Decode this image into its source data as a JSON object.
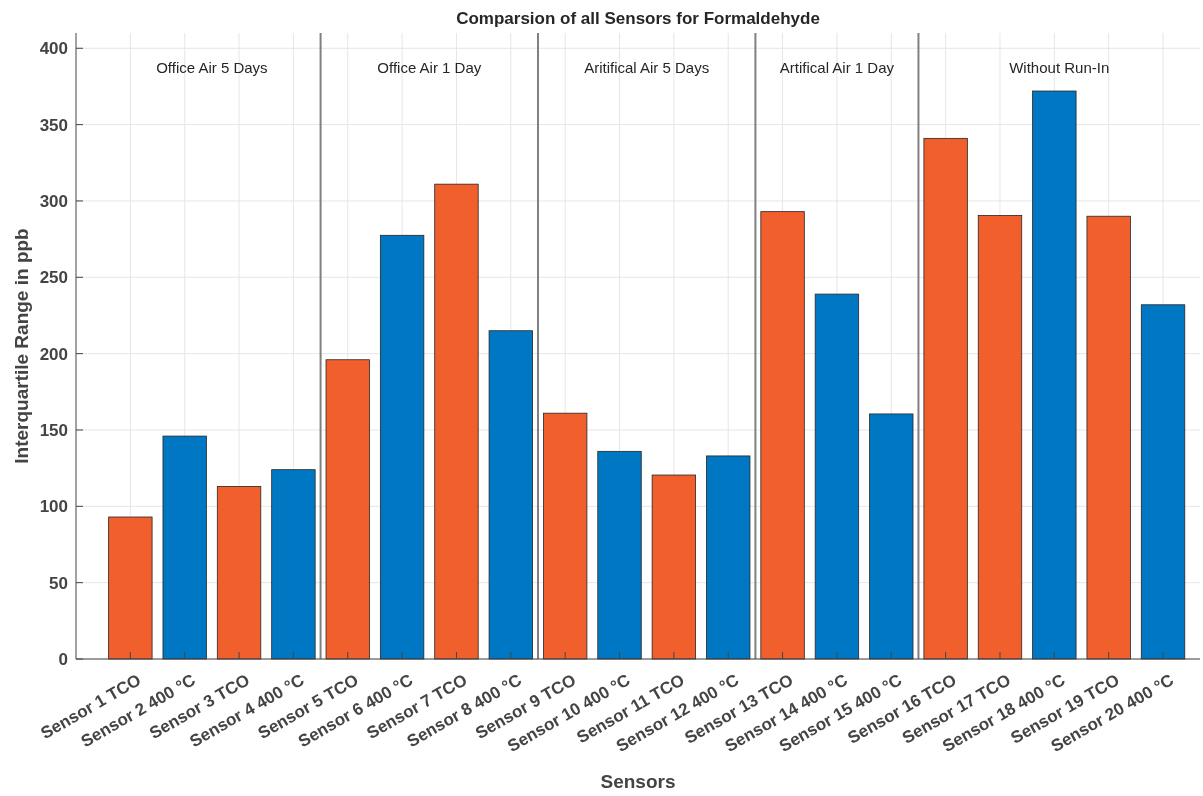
{
  "chart_data": {
    "type": "bar",
    "title": "Comparsion of all Sensors for Formaldehyde",
    "xlabel": "Sensors",
    "ylabel": "Interquartile Range in ppb",
    "categories": [
      "Sensor 1 TCO",
      "Sensor 2 400 °C",
      "Sensor 3 TCO",
      "Sensor 4 400 °C",
      "Sensor 5 TCO",
      "Sensor 6 400 °C",
      "Sensor 7 TCO",
      "Sensor 8 400 °C",
      "Sensor 9 TCO",
      "Sensor 10 400 °C",
      "Sensor 11 TCO",
      "Sensor 12 400 °C",
      "Sensor 13 TCO",
      "Sensor 14 400 °C",
      "Sensor 15 400 °C",
      "Sensor 16 TCO",
      "Sensor 17 TCO",
      "Sensor 18 400 °C",
      "Sensor 19 TCO",
      "Sensor 20 400 °C"
    ],
    "values": [
      93,
      146,
      113,
      124,
      196,
      277.5,
      311,
      215,
      161,
      136,
      120.5,
      133,
      293,
      239,
      160.5,
      341,
      290.5,
      372,
      290,
      232
    ],
    "colors": [
      "#f05f2c",
      "#0077c2",
      "#f05f2c",
      "#0077c2",
      "#f05f2c",
      "#0077c2",
      "#f05f2c",
      "#0077c2",
      "#f05f2c",
      "#0077c2",
      "#f05f2c",
      "#0077c2",
      "#f05f2c",
      "#0077c2",
      "#0077c2",
      "#f05f2c",
      "#f05f2c",
      "#0077c2",
      "#f05f2c",
      "#0077c2"
    ],
    "ylim": [
      0,
      410
    ],
    "yticks": [
      0,
      50,
      100,
      150,
      200,
      250,
      300,
      350,
      400
    ],
    "grid": true,
    "annotations": [
      "Office Air 5 Days",
      "Office Air 1 Day",
      "Aritifical Air 5 Days",
      "Artifical Air 1 Day",
      "Without Run-In"
    ]
  }
}
